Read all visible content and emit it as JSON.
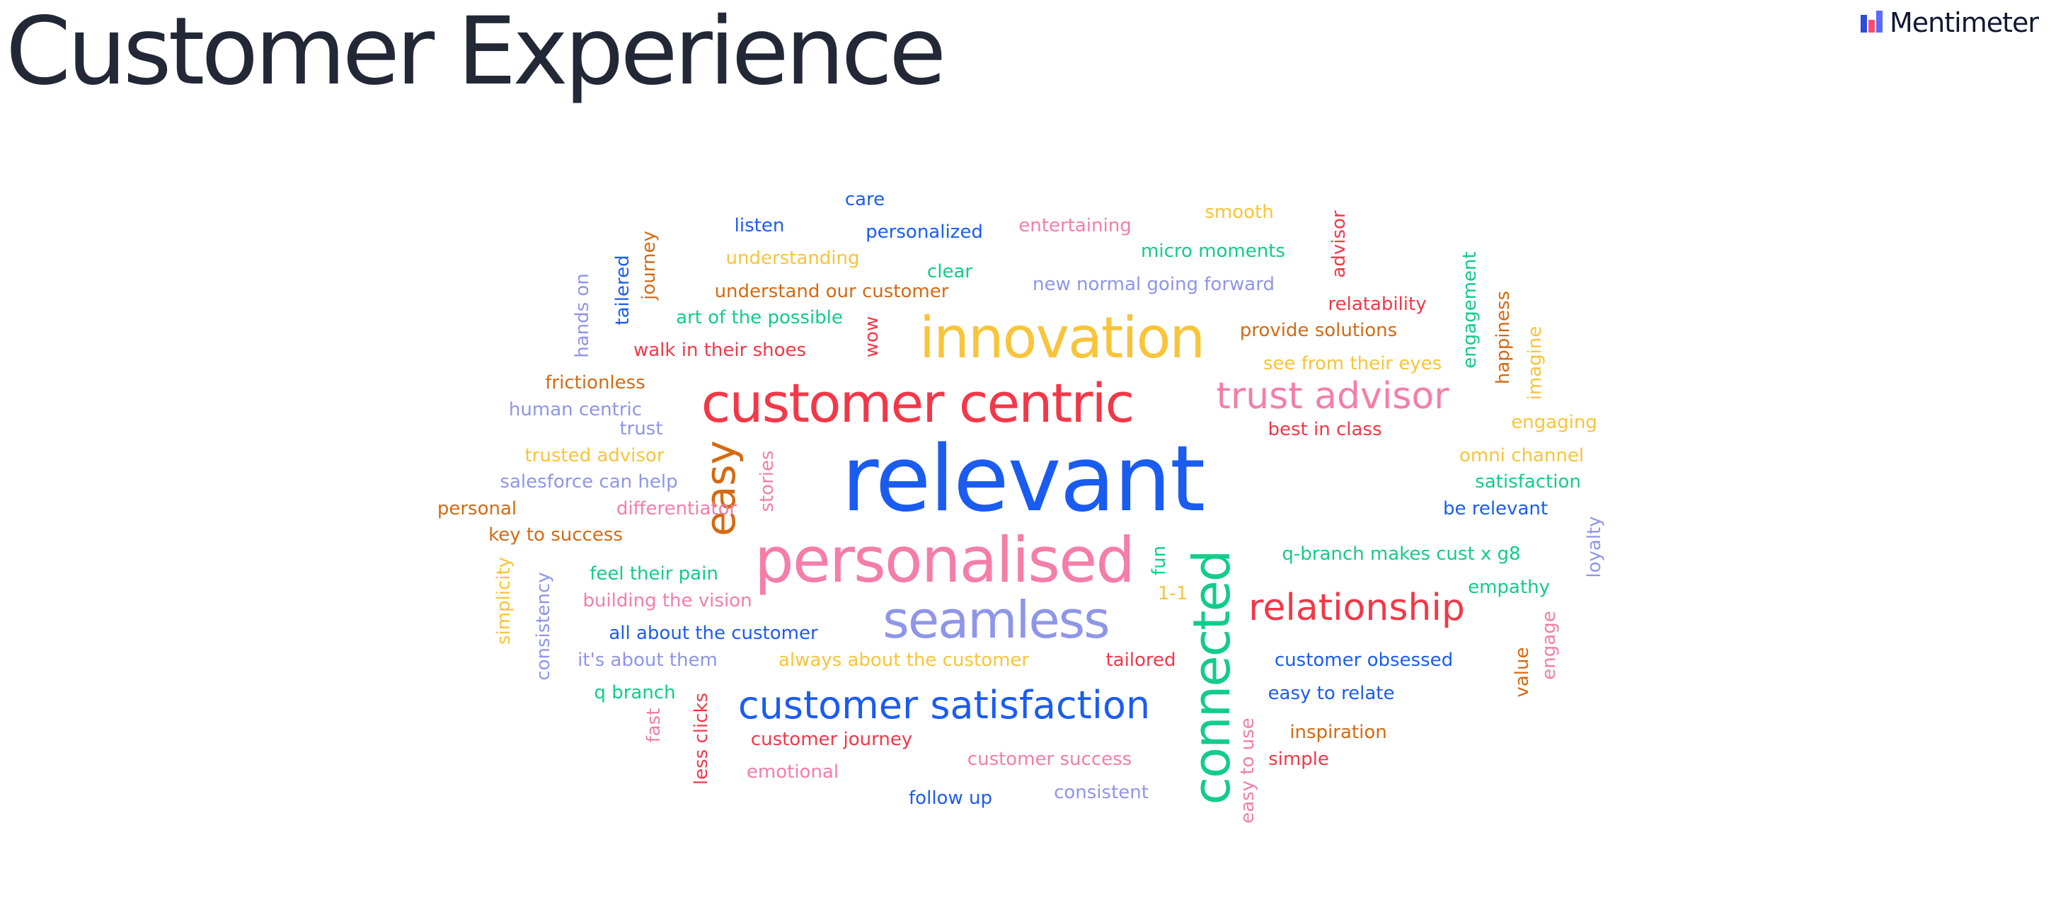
{
  "title": "Customer Experience",
  "brand": {
    "name": "Mentimeter",
    "icon": "mentimeter-logo-icon",
    "colors": [
      "#ff4b6b",
      "#5a6bff",
      "#2f4bd9"
    ]
  },
  "palette": {
    "blue": "#1b5cf0",
    "red": "#f23848",
    "yellow": "#f8c43a",
    "pink": "#f47ea8",
    "periwinkle": "#8f95e8",
    "green": "#12cc8a",
    "orange": "#d46a12"
  },
  "word_cloud": {
    "words": [
      {
        "text": "relevant",
        "color": "blue"
      },
      {
        "text": "personalised",
        "color": "pink"
      },
      {
        "text": "customer centric",
        "color": "red"
      },
      {
        "text": "innovation",
        "color": "yellow"
      },
      {
        "text": "seamless",
        "color": "periwinkle"
      },
      {
        "text": "connected",
        "color": "green",
        "vertical": true
      },
      {
        "text": "customer satisfaction",
        "color": "blue"
      },
      {
        "text": "trust advisor",
        "color": "pink"
      },
      {
        "text": "relationship",
        "color": "red"
      },
      {
        "text": "easy",
        "color": "orange",
        "vertical": true
      },
      {
        "text": "care",
        "color": "blue"
      },
      {
        "text": "listen",
        "color": "blue"
      },
      {
        "text": "personalized",
        "color": "blue"
      },
      {
        "text": "entertaining",
        "color": "pink"
      },
      {
        "text": "smooth",
        "color": "yellow"
      },
      {
        "text": "advisor",
        "color": "red",
        "vertical": true
      },
      {
        "text": "understanding",
        "color": "yellow"
      },
      {
        "text": "micro moments",
        "color": "green"
      },
      {
        "text": "journey",
        "color": "orange",
        "vertical": true
      },
      {
        "text": "tailered",
        "color": "blue",
        "vertical": true
      },
      {
        "text": "clear",
        "color": "green"
      },
      {
        "text": "understand our customer",
        "color": "orange"
      },
      {
        "text": "new normal going forward",
        "color": "periwinkle"
      },
      {
        "text": "engagement",
        "color": "green",
        "vertical": true
      },
      {
        "text": "hands on",
        "color": "periwinkle",
        "vertical": true
      },
      {
        "text": "relatability",
        "color": "red"
      },
      {
        "text": "happiness",
        "color": "orange",
        "vertical": true
      },
      {
        "text": "art of the possible",
        "color": "green"
      },
      {
        "text": "provide solutions",
        "color": "orange"
      },
      {
        "text": "imagine",
        "color": "yellow",
        "vertical": true
      },
      {
        "text": "walk in their shoes",
        "color": "red"
      },
      {
        "text": "wow",
        "color": "red",
        "vertical": true
      },
      {
        "text": "see from their eyes",
        "color": "yellow"
      },
      {
        "text": "frictionless",
        "color": "orange"
      },
      {
        "text": "human centric",
        "color": "periwinkle"
      },
      {
        "text": "engaging",
        "color": "yellow"
      },
      {
        "text": "trust",
        "color": "periwinkle"
      },
      {
        "text": "best in class",
        "color": "red"
      },
      {
        "text": "trusted advisor",
        "color": "yellow"
      },
      {
        "text": "omni channel",
        "color": "yellow"
      },
      {
        "text": "stories",
        "color": "pink",
        "vertical": true
      },
      {
        "text": "salesforce can help",
        "color": "periwinkle"
      },
      {
        "text": "satisfaction",
        "color": "green"
      },
      {
        "text": "personal",
        "color": "orange"
      },
      {
        "text": "differentiator",
        "color": "pink"
      },
      {
        "text": "be relevant",
        "color": "blue"
      },
      {
        "text": "key to success",
        "color": "orange"
      },
      {
        "text": "loyalty",
        "color": "periwinkle",
        "vertical": true
      },
      {
        "text": "q-branch makes cust x g8",
        "color": "green"
      },
      {
        "text": "fun",
        "color": "green",
        "vertical": true
      },
      {
        "text": "simplicity",
        "color": "yellow",
        "vertical": true
      },
      {
        "text": "feel their pain",
        "color": "green"
      },
      {
        "text": "consistency",
        "color": "periwinkle",
        "vertical": true
      },
      {
        "text": "empathy",
        "color": "green"
      },
      {
        "text": "1-1",
        "color": "yellow"
      },
      {
        "text": "building the vision",
        "color": "pink"
      },
      {
        "text": "engage",
        "color": "pink",
        "vertical": true
      },
      {
        "text": "all about the customer",
        "color": "blue"
      },
      {
        "text": "it's about them",
        "color": "periwinkle"
      },
      {
        "text": "always about the customer",
        "color": "yellow"
      },
      {
        "text": "tailored",
        "color": "red"
      },
      {
        "text": "customer obsessed",
        "color": "blue"
      },
      {
        "text": "value",
        "color": "orange",
        "vertical": true
      },
      {
        "text": "q branch",
        "color": "green"
      },
      {
        "text": "easy to relate",
        "color": "blue"
      },
      {
        "text": "fast",
        "color": "pink",
        "vertical": true
      },
      {
        "text": "less clicks",
        "color": "red",
        "vertical": true
      },
      {
        "text": "customer journey",
        "color": "red"
      },
      {
        "text": "inspiration",
        "color": "orange"
      },
      {
        "text": "easy to use",
        "color": "pink",
        "vertical": true
      },
      {
        "text": "customer success",
        "color": "pink"
      },
      {
        "text": "simple",
        "color": "red"
      },
      {
        "text": "emotional",
        "color": "pink"
      },
      {
        "text": "follow up",
        "color": "blue"
      },
      {
        "text": "consistent",
        "color": "periwinkle"
      }
    ]
  }
}
